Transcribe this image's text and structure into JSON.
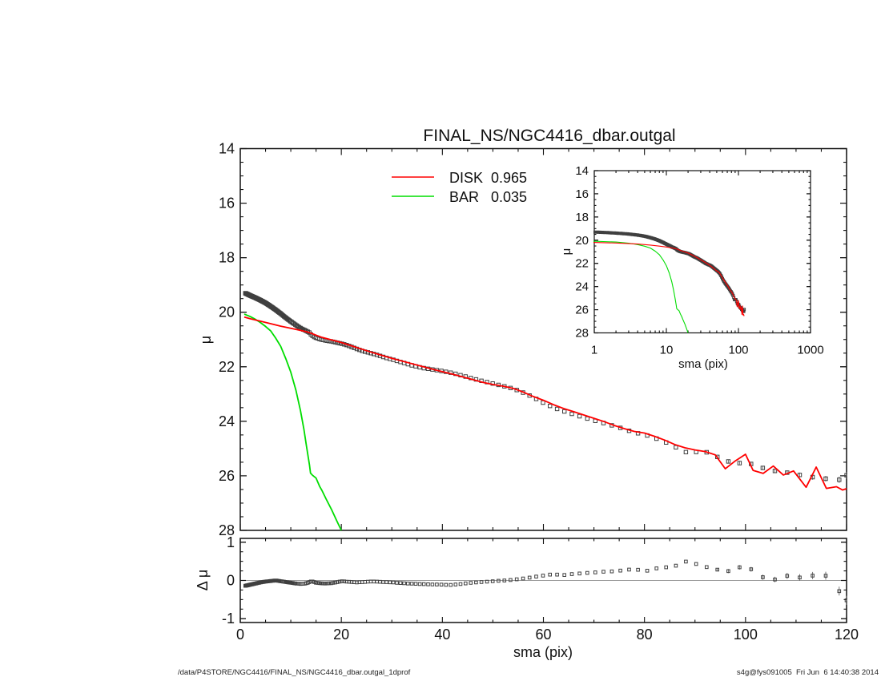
{
  "figure": {
    "title": "FINAL_NS/NGC4416_dbar.outgal",
    "footer_left": "/data/P4STORE/NGC4416/FINAL_NS/NGC4416_dbar.outgal_1dprof",
    "footer_right": "s4g@fys091005  Fri Jun  6 14:40:38 2014"
  },
  "labels": {
    "mu": "μ",
    "delta_mu": "Δ μ",
    "sma": "sma (pix)"
  },
  "chart_data": {
    "type": "line",
    "title": "FINAL_NS/NGC4416_dbar.outgal",
    "description": "Galaxy 1D surface brightness profile decomposition: main panel (mu vs sma), log-x inset, and residual panel (delta mu vs sma).",
    "colors": {
      "disk": "#ff0000",
      "bar": "#00dd00",
      "data_marker": "#3f3f3f",
      "error_bar": "#666666",
      "zero_line": "#999999",
      "frame": "#111111"
    },
    "panels": {
      "main": {
        "xlabel": "",
        "ylabel": "μ",
        "xlim": [
          0,
          120
        ],
        "ylim": [
          14,
          28
        ],
        "y_inverted": true,
        "axes": {
          "x_major": [
            0,
            20,
            40,
            60,
            80,
            100,
            120
          ],
          "x_minor_step": 5,
          "y_major": [
            14,
            16,
            18,
            20,
            22,
            24,
            26,
            28
          ],
          "y_minor_step": 0.5,
          "show_x_labels": false,
          "show_y_labels": true
        },
        "legend": [
          {
            "name": "DISK",
            "fraction": "0.965"
          },
          {
            "name": "BAR",
            "fraction": "0.035"
          }
        ]
      },
      "inset": {
        "xlabel": "sma (pix)",
        "ylabel": "μ",
        "xscale": "log",
        "xlim": [
          1,
          1000
        ],
        "ylim": [
          14,
          28
        ],
        "y_inverted": true,
        "axes": {
          "x_major": [
            1,
            10,
            100,
            1000
          ],
          "y_major": [
            14,
            16,
            18,
            20,
            22,
            24,
            26,
            28
          ],
          "y_minor_step": 0.5,
          "show_x_labels": true,
          "show_y_labels": true
        }
      },
      "residual": {
        "xlabel": "sma (pix)",
        "ylabel": "Δ μ",
        "xlim": [
          0,
          120
        ],
        "ylim": [
          -1.1,
          1.1
        ],
        "zero_line": true,
        "axes": {
          "x_major": [
            0,
            20,
            40,
            60,
            80,
            100,
            120
          ],
          "x_minor_step": 5,
          "y_major": [
            1,
            0,
            -1
          ],
          "y_minor_step": 0.25,
          "show_x_labels": true,
          "show_y_labels": true
        }
      }
    },
    "profile": {
      "sampling": {
        "start": 1,
        "ratio": 1.023,
        "end": 120
      },
      "observed_mu": [
        [
          1,
          19.3
        ],
        [
          2,
          19.39
        ],
        [
          3,
          19.47
        ],
        [
          4,
          19.56
        ],
        [
          5,
          19.66
        ],
        [
          6,
          19.78
        ],
        [
          7,
          19.91
        ],
        [
          8,
          20.05
        ],
        [
          9,
          20.2
        ],
        [
          10,
          20.34
        ],
        [
          11,
          20.47
        ],
        [
          12,
          20.59
        ],
        [
          13,
          20.68
        ],
        [
          13.7,
          20.75
        ],
        [
          14.1,
          20.84
        ],
        [
          14.5,
          20.89
        ],
        [
          15,
          20.94
        ],
        [
          16,
          21.0
        ],
        [
          17,
          21.04
        ],
        [
          18,
          21.07
        ],
        [
          19,
          21.11
        ],
        [
          20,
          21.15
        ],
        [
          21,
          21.2
        ],
        [
          22,
          21.27
        ],
        [
          23,
          21.34
        ],
        [
          24,
          21.41
        ],
        [
          25,
          21.46
        ],
        [
          26,
          21.51
        ],
        [
          27,
          21.56
        ],
        [
          28,
          21.62
        ],
        [
          29,
          21.68
        ],
        [
          30,
          21.73
        ],
        [
          32,
          21.84
        ],
        [
          34,
          21.95
        ],
        [
          36,
          22.04
        ],
        [
          38,
          22.1
        ],
        [
          40,
          22.16
        ],
        [
          42,
          22.23
        ],
        [
          44,
          22.33
        ],
        [
          45,
          22.38
        ],
        [
          47,
          22.48
        ],
        [
          49,
          22.57
        ],
        [
          51,
          22.66
        ],
        [
          53,
          22.75
        ],
        [
          55,
          22.87
        ],
        [
          57,
          23.03
        ],
        [
          58.5,
          23.17
        ],
        [
          60,
          23.32
        ],
        [
          62,
          23.5
        ],
        [
          64,
          23.63
        ],
        [
          66,
          23.75
        ],
        [
          68,
          23.86
        ],
        [
          70,
          23.97
        ],
        [
          72,
          24.07
        ],
        [
          74,
          24.17
        ],
        [
          76,
          24.29
        ],
        [
          78,
          24.41
        ],
        [
          80,
          24.49
        ],
        [
          82,
          24.61
        ],
        [
          84,
          24.75
        ],
        [
          86,
          24.93
        ],
        [
          88,
          25.13
        ],
        [
          90,
          25.13
        ],
        [
          92,
          25.11
        ],
        [
          94,
          25.27
        ],
        [
          96,
          25.43
        ],
        [
          98,
          25.56
        ],
        [
          100,
          25.49
        ],
        [
          102.5,
          25.66
        ],
        [
          105,
          25.8
        ],
        [
          107.5,
          25.86
        ],
        [
          110,
          25.93
        ],
        [
          112.5,
          26.06
        ],
        [
          115,
          26.02
        ],
        [
          117.5,
          26.26
        ],
        [
          120,
          25.98
        ]
      ],
      "residual_dmu": [
        [
          1,
          -0.14
        ],
        [
          2,
          -0.11
        ],
        [
          3,
          -0.08
        ],
        [
          4,
          -0.05
        ],
        [
          5,
          -0.03
        ],
        [
          6,
          -0.015
        ],
        [
          7,
          0
        ],
        [
          8,
          -0.02
        ],
        [
          9,
          -0.04
        ],
        [
          10,
          -0.06
        ],
        [
          11,
          -0.08
        ],
        [
          12,
          -0.09
        ],
        [
          12.7,
          -0.085
        ],
        [
          13.4,
          -0.06
        ],
        [
          14.1,
          -0.02
        ],
        [
          14.6,
          -0.04
        ],
        [
          15,
          -0.06
        ],
        [
          16,
          -0.075
        ],
        [
          17,
          -0.08
        ],
        [
          18,
          -0.07
        ],
        [
          19,
          -0.05
        ],
        [
          20,
          -0.02
        ],
        [
          21,
          -0.03
        ],
        [
          22,
          -0.04
        ],
        [
          23,
          -0.05
        ],
        [
          24,
          -0.045
        ],
        [
          25,
          -0.035
        ],
        [
          26,
          -0.025
        ],
        [
          27,
          -0.03
        ],
        [
          28,
          -0.04
        ],
        [
          30,
          -0.05
        ],
        [
          32,
          -0.07
        ],
        [
          34,
          -0.085
        ],
        [
          36,
          -0.095
        ],
        [
          38,
          -0.105
        ],
        [
          40,
          -0.11
        ],
        [
          42,
          -0.12
        ],
        [
          43,
          -0.1
        ],
        [
          44,
          -0.09
        ],
        [
          45,
          -0.07
        ],
        [
          47,
          -0.05
        ],
        [
          49,
          -0.03
        ],
        [
          51,
          -0.01
        ],
        [
          52.5,
          0
        ],
        [
          54,
          0.02
        ],
        [
          55.5,
          0.04
        ],
        [
          57,
          0.07
        ],
        [
          58.5,
          0.1
        ],
        [
          60,
          0.13
        ],
        [
          61,
          0.15
        ],
        [
          62,
          0.16
        ],
        [
          63,
          0.15
        ],
        [
          64,
          0.14
        ],
        [
          65,
          0.155
        ],
        [
          66,
          0.17
        ],
        [
          68,
          0.19
        ],
        [
          70,
          0.21
        ],
        [
          72,
          0.23
        ],
        [
          74,
          0.24
        ],
        [
          76,
          0.27
        ],
        [
          78,
          0.3
        ],
        [
          79,
          0.27
        ],
        [
          80,
          0.24
        ],
        [
          81,
          0.27
        ],
        [
          82,
          0.31
        ],
        [
          84,
          0.34
        ],
        [
          86,
          0.37
        ],
        [
          87,
          0.44
        ],
        [
          88,
          0.5
        ],
        [
          89,
          0.47
        ],
        [
          90,
          0.44
        ],
        [
          91,
          0.4
        ],
        [
          92,
          0.36
        ],
        [
          93,
          0.33
        ],
        [
          94,
          0.3
        ],
        [
          95,
          0.26
        ],
        [
          96,
          0.22
        ],
        [
          97,
          0.26
        ],
        [
          98,
          0.31
        ],
        [
          99,
          0.35
        ],
        [
          100,
          0.38
        ],
        [
          101,
          0.3
        ],
        [
          102.5,
          0.19
        ],
        [
          104,
          0.02
        ],
        [
          105,
          -0.04
        ],
        [
          106,
          0.04
        ],
        [
          107.5,
          0.13
        ],
        [
          109,
          0.11
        ],
        [
          110,
          0.1
        ],
        [
          111,
          0.07
        ],
        [
          112.5,
          0.05
        ],
        [
          113.7,
          0.17
        ],
        [
          115,
          0.3
        ],
        [
          116,
          0.1
        ],
        [
          117.5,
          -0.13
        ],
        [
          118.7,
          -0.3
        ],
        [
          120,
          -0.52
        ]
      ],
      "mu_error": [
        [
          1,
          0
        ],
        [
          93,
          0
        ],
        [
          95,
          0.05
        ],
        [
          100,
          0.06
        ],
        [
          105,
          0.07
        ],
        [
          110,
          0.085
        ],
        [
          115,
          0.1
        ],
        [
          120,
          0.12
        ]
      ]
    },
    "models": {
      "disk": {
        "name": "DISK",
        "fraction": "0.965",
        "color": "#ff0000",
        "points": [
          [
            0.8,
            20.18
          ],
          [
            2,
            20.24
          ],
          [
            4,
            20.33
          ],
          [
            6,
            20.42
          ],
          [
            8,
            20.51
          ],
          [
            10,
            20.59
          ],
          [
            12,
            20.67
          ],
          [
            13,
            20.71
          ],
          [
            14,
            20.77
          ],
          [
            15,
            20.84
          ],
          [
            16,
            20.91
          ],
          [
            18,
            21.01
          ],
          [
            20,
            21.11
          ],
          [
            22,
            21.23
          ],
          [
            24,
            21.35
          ],
          [
            26,
            21.47
          ],
          [
            28,
            21.58
          ],
          [
            30,
            21.69
          ],
          [
            32,
            21.79
          ],
          [
            34,
            21.89
          ],
          [
            36,
            21.99
          ],
          [
            38,
            22.09
          ],
          [
            40,
            22.18
          ],
          [
            42,
            22.27
          ],
          [
            44,
            22.37
          ],
          [
            46,
            22.47
          ],
          [
            48,
            22.57
          ],
          [
            50,
            22.65
          ],
          [
            52,
            22.71
          ],
          [
            54,
            22.79
          ],
          [
            56,
            22.93
          ],
          [
            58,
            23.09
          ],
          [
            60,
            23.23
          ],
          [
            62,
            23.39
          ],
          [
            64,
            23.53
          ],
          [
            66,
            23.65
          ],
          [
            68,
            23.77
          ],
          [
            70,
            23.89
          ],
          [
            72,
            24.01
          ],
          [
            74,
            24.15
          ],
          [
            76,
            24.27
          ],
          [
            78,
            24.37
          ],
          [
            80,
            24.43
          ],
          [
            82,
            24.55
          ],
          [
            84,
            24.69
          ],
          [
            86,
            24.85
          ],
          [
            88,
            24.97
          ],
          [
            90,
            25.05
          ],
          [
            92,
            25.11
          ],
          [
            94,
            25.23
          ],
          [
            96,
            25.74
          ],
          [
            98,
            25.45
          ],
          [
            100,
            25.21
          ],
          [
            101.5,
            25.8
          ],
          [
            103.5,
            25.91
          ],
          [
            105.5,
            25.64
          ],
          [
            107.5,
            25.97
          ],
          [
            109.5,
            25.82
          ],
          [
            112,
            26.42
          ],
          [
            114,
            25.68
          ],
          [
            116,
            26.46
          ],
          [
            118,
            26.4
          ],
          [
            119.2,
            26.52
          ],
          [
            120,
            26.47
          ]
        ]
      },
      "bar": {
        "name": "BAR",
        "fraction": "0.035",
        "color": "#00dd00",
        "points": [
          [
            0.8,
            20.07
          ],
          [
            2,
            20.16
          ],
          [
            3,
            20.26
          ],
          [
            4,
            20.38
          ],
          [
            5,
            20.52
          ],
          [
            6,
            20.68
          ],
          [
            7,
            20.95
          ],
          [
            8,
            21.25
          ],
          [
            9,
            21.7
          ],
          [
            10,
            22.2
          ],
          [
            11,
            22.85
          ],
          [
            11.9,
            23.6
          ],
          [
            12.6,
            24.3
          ],
          [
            13.1,
            24.9
          ],
          [
            13.7,
            25.6
          ],
          [
            13.9,
            25.9
          ],
          [
            14.3,
            25.98
          ],
          [
            15,
            26.08
          ],
          [
            15.7,
            26.38
          ],
          [
            16.2,
            26.55
          ],
          [
            17,
            26.85
          ],
          [
            18.1,
            27.25
          ],
          [
            19.1,
            27.65
          ],
          [
            20,
            28.0
          ]
        ]
      }
    }
  }
}
